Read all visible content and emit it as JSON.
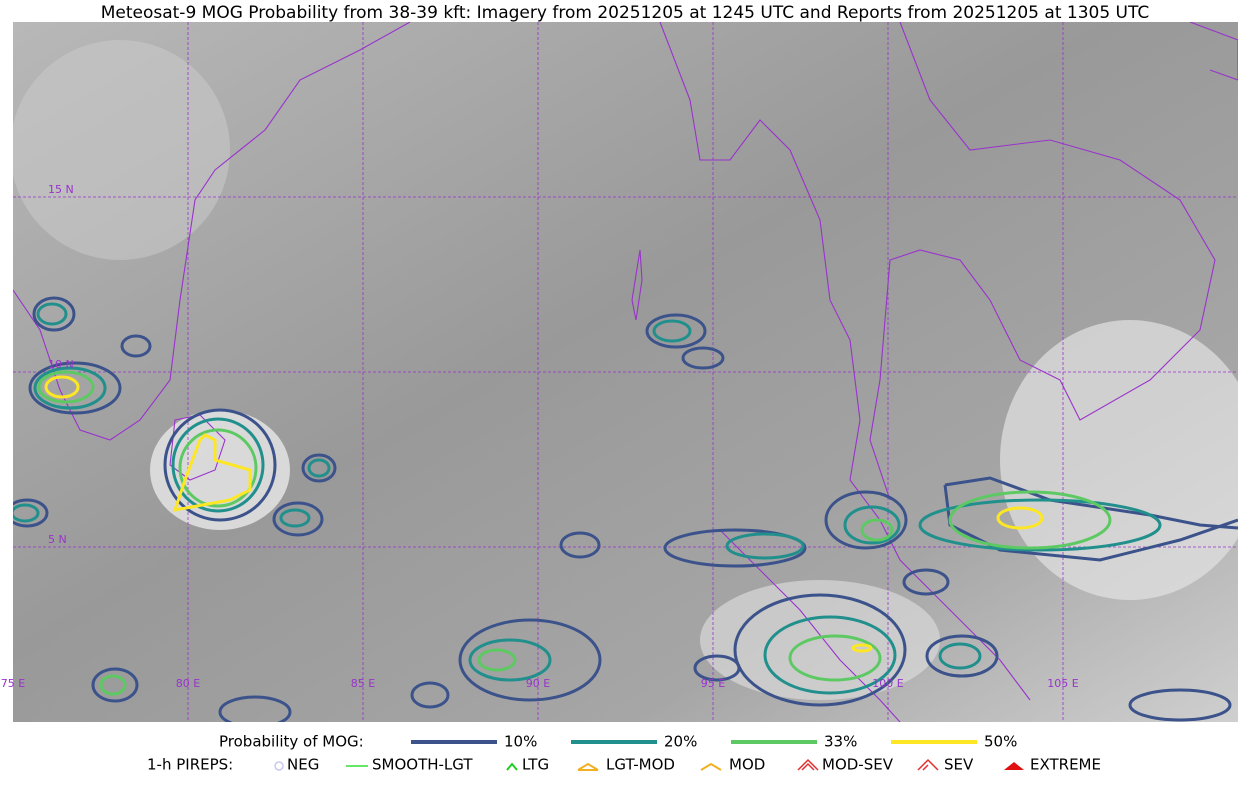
{
  "title": "Meteosat-9 MOG Probability from 38-39 kft: Imagery from 20251205 at 1245 UTC and Reports from 20251205 at 1305 UTC",
  "map": {
    "lat_labels": [
      "15 N",
      "10 N",
      "5 N"
    ],
    "lon_labels": [
      "75 E",
      "80 E",
      "85 E",
      "90 E",
      "95 E",
      "100 E",
      "105 E"
    ]
  },
  "legend": {
    "mog": {
      "label": "Probability of MOG:",
      "items": [
        {
          "label": "10%",
          "color": "#3b528b"
        },
        {
          "label": "20%",
          "color": "#21908d"
        },
        {
          "label": "33%",
          "color": "#5dc963"
        },
        {
          "label": "50%",
          "color": "#fde725"
        }
      ]
    },
    "pireps": {
      "label": "1-h PIREPS:",
      "items": [
        {
          "label": "NEG",
          "color": "#c8c8f0"
        },
        {
          "label": "SMOOTH-LGT",
          "color": "#33dd33"
        },
        {
          "label": "LTG",
          "color": "#22cc22"
        },
        {
          "label": "LGT-MOD",
          "color": "#f0b020"
        },
        {
          "label": "MOD",
          "color": "#f0b020"
        },
        {
          "label": "MOD-SEV",
          "color": "#e03030"
        },
        {
          "label": "SEV",
          "color": "#e03030"
        },
        {
          "label": "EXTREME",
          "color": "#e01010"
        }
      ]
    }
  }
}
